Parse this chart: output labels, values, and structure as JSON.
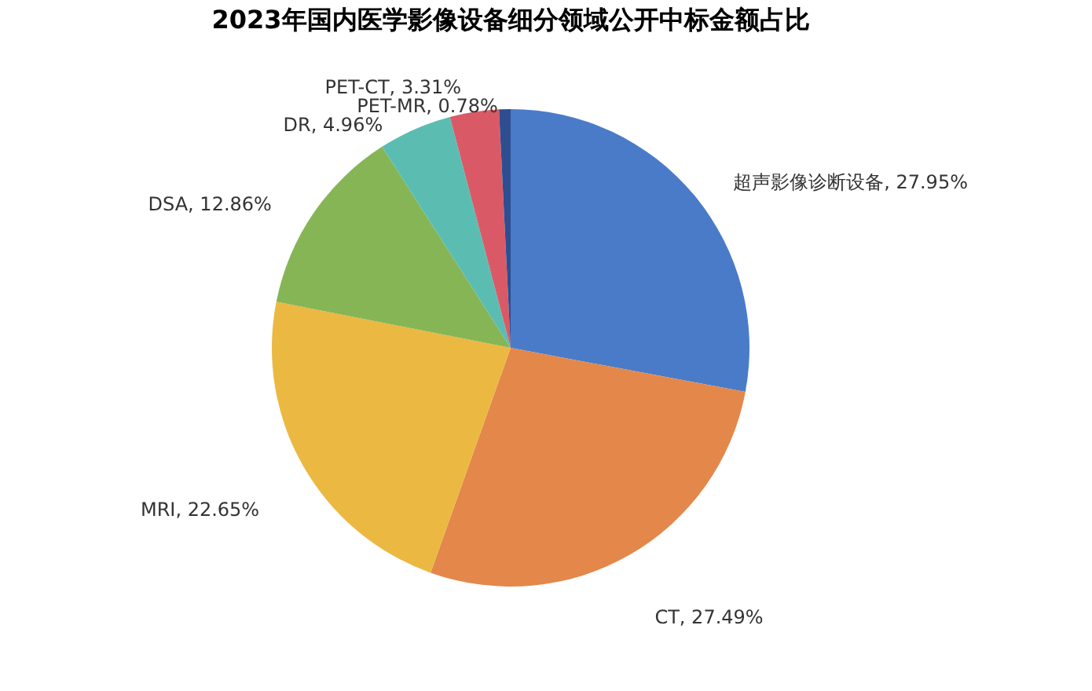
{
  "chart_data": {
    "type": "pie",
    "title": "2023年国内医学影像设备细分领域公开中标金额占比",
    "categories": [
      "超声影像诊断设备",
      "CT",
      "MRI",
      "DSA",
      "DR",
      "PET-CT",
      "PET-MR"
    ],
    "values": [
      27.95,
      27.49,
      22.65,
      12.86,
      4.96,
      3.31,
      0.78
    ],
    "value_labels": [
      "27.95%",
      "27.49%",
      "22.65%",
      "12.86%",
      "4.96%",
      "3.31%",
      "0.78%"
    ],
    "colors": [
      "#4a7bc8",
      "#e3874a",
      "#ebb842",
      "#86b555",
      "#5bbdb2",
      "#d95a66",
      "#2e4e8f"
    ],
    "legend": false
  }
}
